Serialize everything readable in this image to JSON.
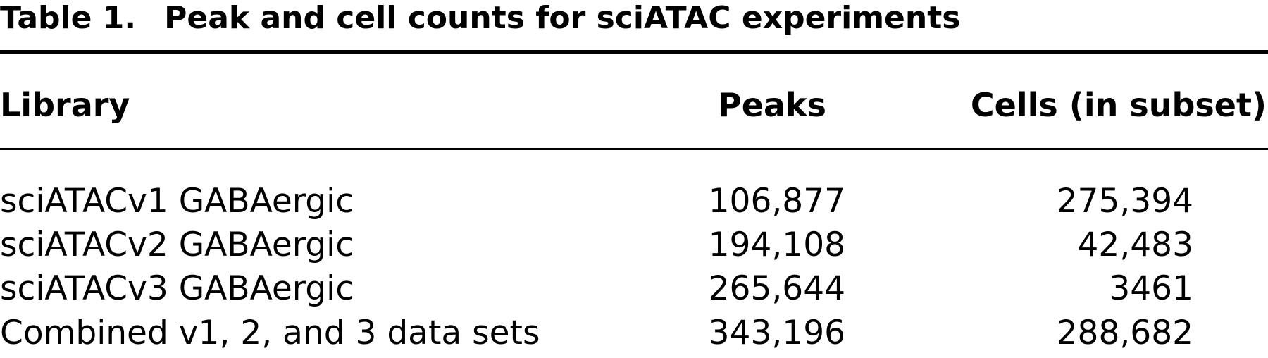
{
  "title": {
    "label": "Table 1.",
    "text": "Peak and cell counts for sciATAC experiments"
  },
  "table": {
    "header": [
      "Library",
      "Peaks",
      "Cells (in subset)"
    ],
    "rows": [
      [
        "sciATACv1 GABAergic",
        "106,877",
        "275,394"
      ],
      [
        "sciATACv2 GABAergic",
        "194,108",
        "42,483"
      ],
      [
        "sciATACv3 GABAergic",
        "265,644",
        "3461"
      ],
      [
        "Combined v1, 2, and 3 data sets",
        "343,196",
        "288,682"
      ]
    ]
  }
}
